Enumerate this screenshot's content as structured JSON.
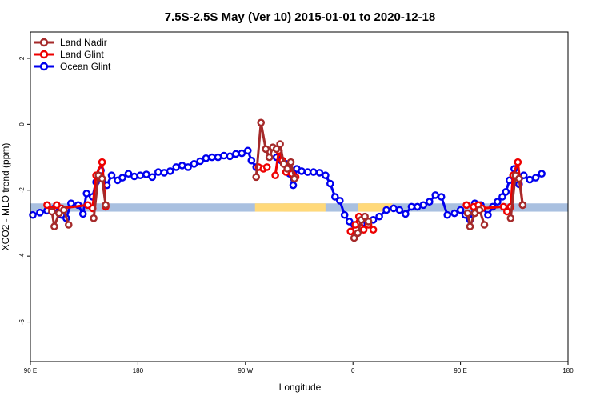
{
  "chart_data": {
    "type": "line",
    "title": "7.5S-2.5S May (Ver 10)   2015-01-01 to 2020-12-18",
    "xlabel": "Longitude",
    "ylabel": "XCO2 - MLO trend (ppm)",
    "xlim": [
      90,
      540
    ],
    "ylim": [
      -7.2,
      2.8
    ],
    "x_ticks": [
      {
        "value": 90,
        "label": "90 E"
      },
      {
        "value": 180,
        "label": "180"
      },
      {
        "value": 270,
        "label": "90 W"
      },
      {
        "value": 360,
        "label": "0"
      },
      {
        "value": 450,
        "label": "90 E"
      },
      {
        "value": 540,
        "label": "180"
      }
    ],
    "y_ticks": [
      {
        "value": 2,
        "label": "2"
      },
      {
        "value": 0,
        "label": "0"
      },
      {
        "value": -2,
        "label": "-2"
      },
      {
        "value": -4,
        "label": "-4"
      },
      {
        "value": -6,
        "label": "-6"
      }
    ],
    "legend_position": "top-left",
    "band": {
      "y0": -2.65,
      "y1": -2.4,
      "color": "#a9c0e0"
    },
    "band_highlights": [
      {
        "x0": 278,
        "x1": 323,
        "color": "#ffd97a"
      },
      {
        "x0": 302,
        "x1": 337,
        "color": "#ffd97a"
      },
      {
        "x0": 364,
        "x1": 381,
        "color": "#ffd97a"
      },
      {
        "x0": 368,
        "x1": 393,
        "color": "#ffd97a"
      }
    ],
    "series": [
      {
        "name": "Ocean Glint",
        "color": "#0000ee",
        "segments": [
          [
            [
              92,
              -2.75
            ],
            [
              98,
              -2.68
            ],
            [
              104,
              -2.62
            ],
            [
              110,
              -2.55
            ],
            [
              116,
              -2.75
            ],
            [
              120,
              -2.85
            ],
            [
              124,
              -2.4
            ],
            [
              130,
              -2.45
            ],
            [
              134,
              -2.72
            ],
            [
              137,
              -2.1
            ],
            [
              142,
              -2.2
            ],
            [
              145,
              -1.75
            ],
            [
              149,
              -1.4
            ],
            [
              154,
              -1.85
            ],
            [
              158,
              -1.55
            ],
            [
              163,
              -1.7
            ],
            [
              167,
              -1.62
            ],
            [
              172,
              -1.5
            ],
            [
              177,
              -1.58
            ],
            [
              182,
              -1.55
            ],
            [
              187,
              -1.52
            ],
            [
              192,
              -1.6
            ],
            [
              197,
              -1.45
            ],
            [
              202,
              -1.47
            ],
            [
              207,
              -1.42
            ],
            [
              212,
              -1.3
            ],
            [
              217,
              -1.25
            ],
            [
              222,
              -1.3
            ],
            [
              227,
              -1.2
            ],
            [
              232,
              -1.12
            ],
            [
              237,
              -1.03
            ],
            [
              242,
              -1.0
            ],
            [
              247,
              -1.0
            ],
            [
              252,
              -0.95
            ],
            [
              257,
              -0.97
            ],
            [
              262,
              -0.9
            ],
            [
              267,
              -0.88
            ],
            [
              272,
              -0.8
            ],
            [
              275,
              -1.1
            ],
            [
              279,
              -1.3
            ]
          ],
          [
            [
              296,
              -1.0
            ],
            [
              300,
              -1.1
            ],
            [
              304,
              -1.2
            ],
            [
              307,
              -1.5
            ],
            [
              310,
              -1.85
            ],
            [
              313,
              -1.35
            ],
            [
              317,
              -1.42
            ],
            [
              322,
              -1.45
            ],
            [
              327,
              -1.45
            ],
            [
              332,
              -1.47
            ],
            [
              337,
              -1.55
            ],
            [
              341,
              -1.8
            ],
            [
              345,
              -2.2
            ],
            [
              349,
              -2.32
            ],
            [
              353,
              -2.75
            ],
            [
              357,
              -2.95
            ],
            [
              361,
              -3.05
            ],
            [
              367,
              -3.15
            ],
            [
              372,
              -3.0
            ],
            [
              377,
              -2.9
            ],
            [
              382,
              -2.8
            ],
            [
              388,
              -2.6
            ],
            [
              394,
              -2.55
            ],
            [
              399,
              -2.6
            ],
            [
              404,
              -2.72
            ],
            [
              409,
              -2.5
            ],
            [
              414,
              -2.5
            ],
            [
              419,
              -2.45
            ],
            [
              424,
              -2.35
            ],
            [
              429,
              -2.15
            ],
            [
              434,
              -2.2
            ],
            [
              439,
              -2.75
            ],
            [
              445,
              -2.7
            ],
            [
              450,
              -2.6
            ],
            [
              454,
              -2.75
            ],
            [
              458,
              -2.9
            ],
            [
              462,
              -2.4
            ],
            [
              467,
              -2.45
            ],
            [
              473,
              -2.75
            ],
            [
              477,
              -2.5
            ],
            [
              481,
              -2.35
            ],
            [
              485,
              -2.2
            ],
            [
              488,
              -2.05
            ],
            [
              491,
              -1.7
            ],
            [
              495,
              -1.35
            ],
            [
              499,
              -1.82
            ],
            [
              503,
              -1.55
            ],
            [
              508,
              -1.68
            ],
            [
              513,
              -1.62
            ],
            [
              518,
              -1.5
            ]
          ]
        ]
      },
      {
        "name": "Land Glint",
        "color": "#ee0000",
        "segments": [
          [
            [
              104,
              -2.45
            ],
            [
              108,
              -2.6
            ],
            [
              112,
              -2.45
            ],
            [
              116,
              -2.55
            ],
            [
              138,
              -2.45
            ],
            [
              142,
              -2.55
            ],
            [
              145,
              -1.55
            ],
            [
              150,
              -1.15
            ],
            [
              153,
              -2.5
            ]
          ],
          [
            [
              281,
              -1.3
            ],
            [
              285,
              -1.35
            ],
            [
              288,
              -1.3
            ]
          ],
          [
            [
              295,
              -1.55
            ],
            [
              298,
              -0.8
            ],
            [
              301,
              -1.1
            ],
            [
              304,
              -1.45
            ],
            [
              306,
              -1.3
            ],
            [
              309,
              -1.5
            ],
            [
              312,
              -1.6
            ]
          ],
          [
            [
              358,
              -3.25
            ],
            [
              362,
              -3.05
            ],
            [
              365,
              -2.8
            ],
            [
              369,
              -3.2
            ],
            [
              373,
              -3.05
            ],
            [
              377,
              -3.2
            ]
          ],
          [
            [
              455,
              -2.45
            ],
            [
              461,
              -2.5
            ],
            [
              465,
              -2.45
            ],
            [
              468,
              -2.55
            ],
            [
              486,
              -2.5
            ],
            [
              489,
              -2.65
            ],
            [
              492,
              -2.5
            ],
            [
              494,
              -1.55
            ],
            [
              498,
              -1.15
            ],
            [
              502,
              -2.45
            ]
          ]
        ]
      },
      {
        "name": "Land Nadir",
        "color": "#a52a2a",
        "segments": [
          [
            [
              108,
              -2.65
            ],
            [
              110,
              -3.1
            ],
            [
              114,
              -2.7
            ],
            [
              118,
              -2.6
            ],
            [
              122,
              -3.05
            ]
          ],
          [
            [
              143,
              -2.85
            ],
            [
              147,
              -1.55
            ],
            [
              150,
              -1.65
            ],
            [
              153,
              -2.45
            ]
          ],
          [
            [
              279,
              -1.6
            ],
            [
              283,
              0.05
            ],
            [
              287,
              -0.75
            ],
            [
              290,
              -1.0
            ],
            [
              293,
              -0.7
            ],
            [
              296,
              -0.75
            ],
            [
              299,
              -0.6
            ],
            [
              302,
              -1.2
            ],
            [
              305,
              -1.35
            ],
            [
              308,
              -1.15
            ],
            [
              311,
              -1.65
            ]
          ],
          [
            [
              361,
              -3.45
            ],
            [
              364,
              -3.3
            ],
            [
              367,
              -2.9
            ],
            [
              370,
              -2.8
            ],
            [
              373,
              -2.95
            ]
          ],
          [
            [
              456,
              -2.7
            ],
            [
              458,
              -3.1
            ],
            [
              462,
              -2.7
            ],
            [
              466,
              -2.6
            ],
            [
              470,
              -3.05
            ]
          ],
          [
            [
              492,
              -2.85
            ],
            [
              496,
              -1.55
            ],
            [
              499,
              -1.65
            ],
            [
              502,
              -2.45
            ]
          ]
        ]
      }
    ]
  }
}
